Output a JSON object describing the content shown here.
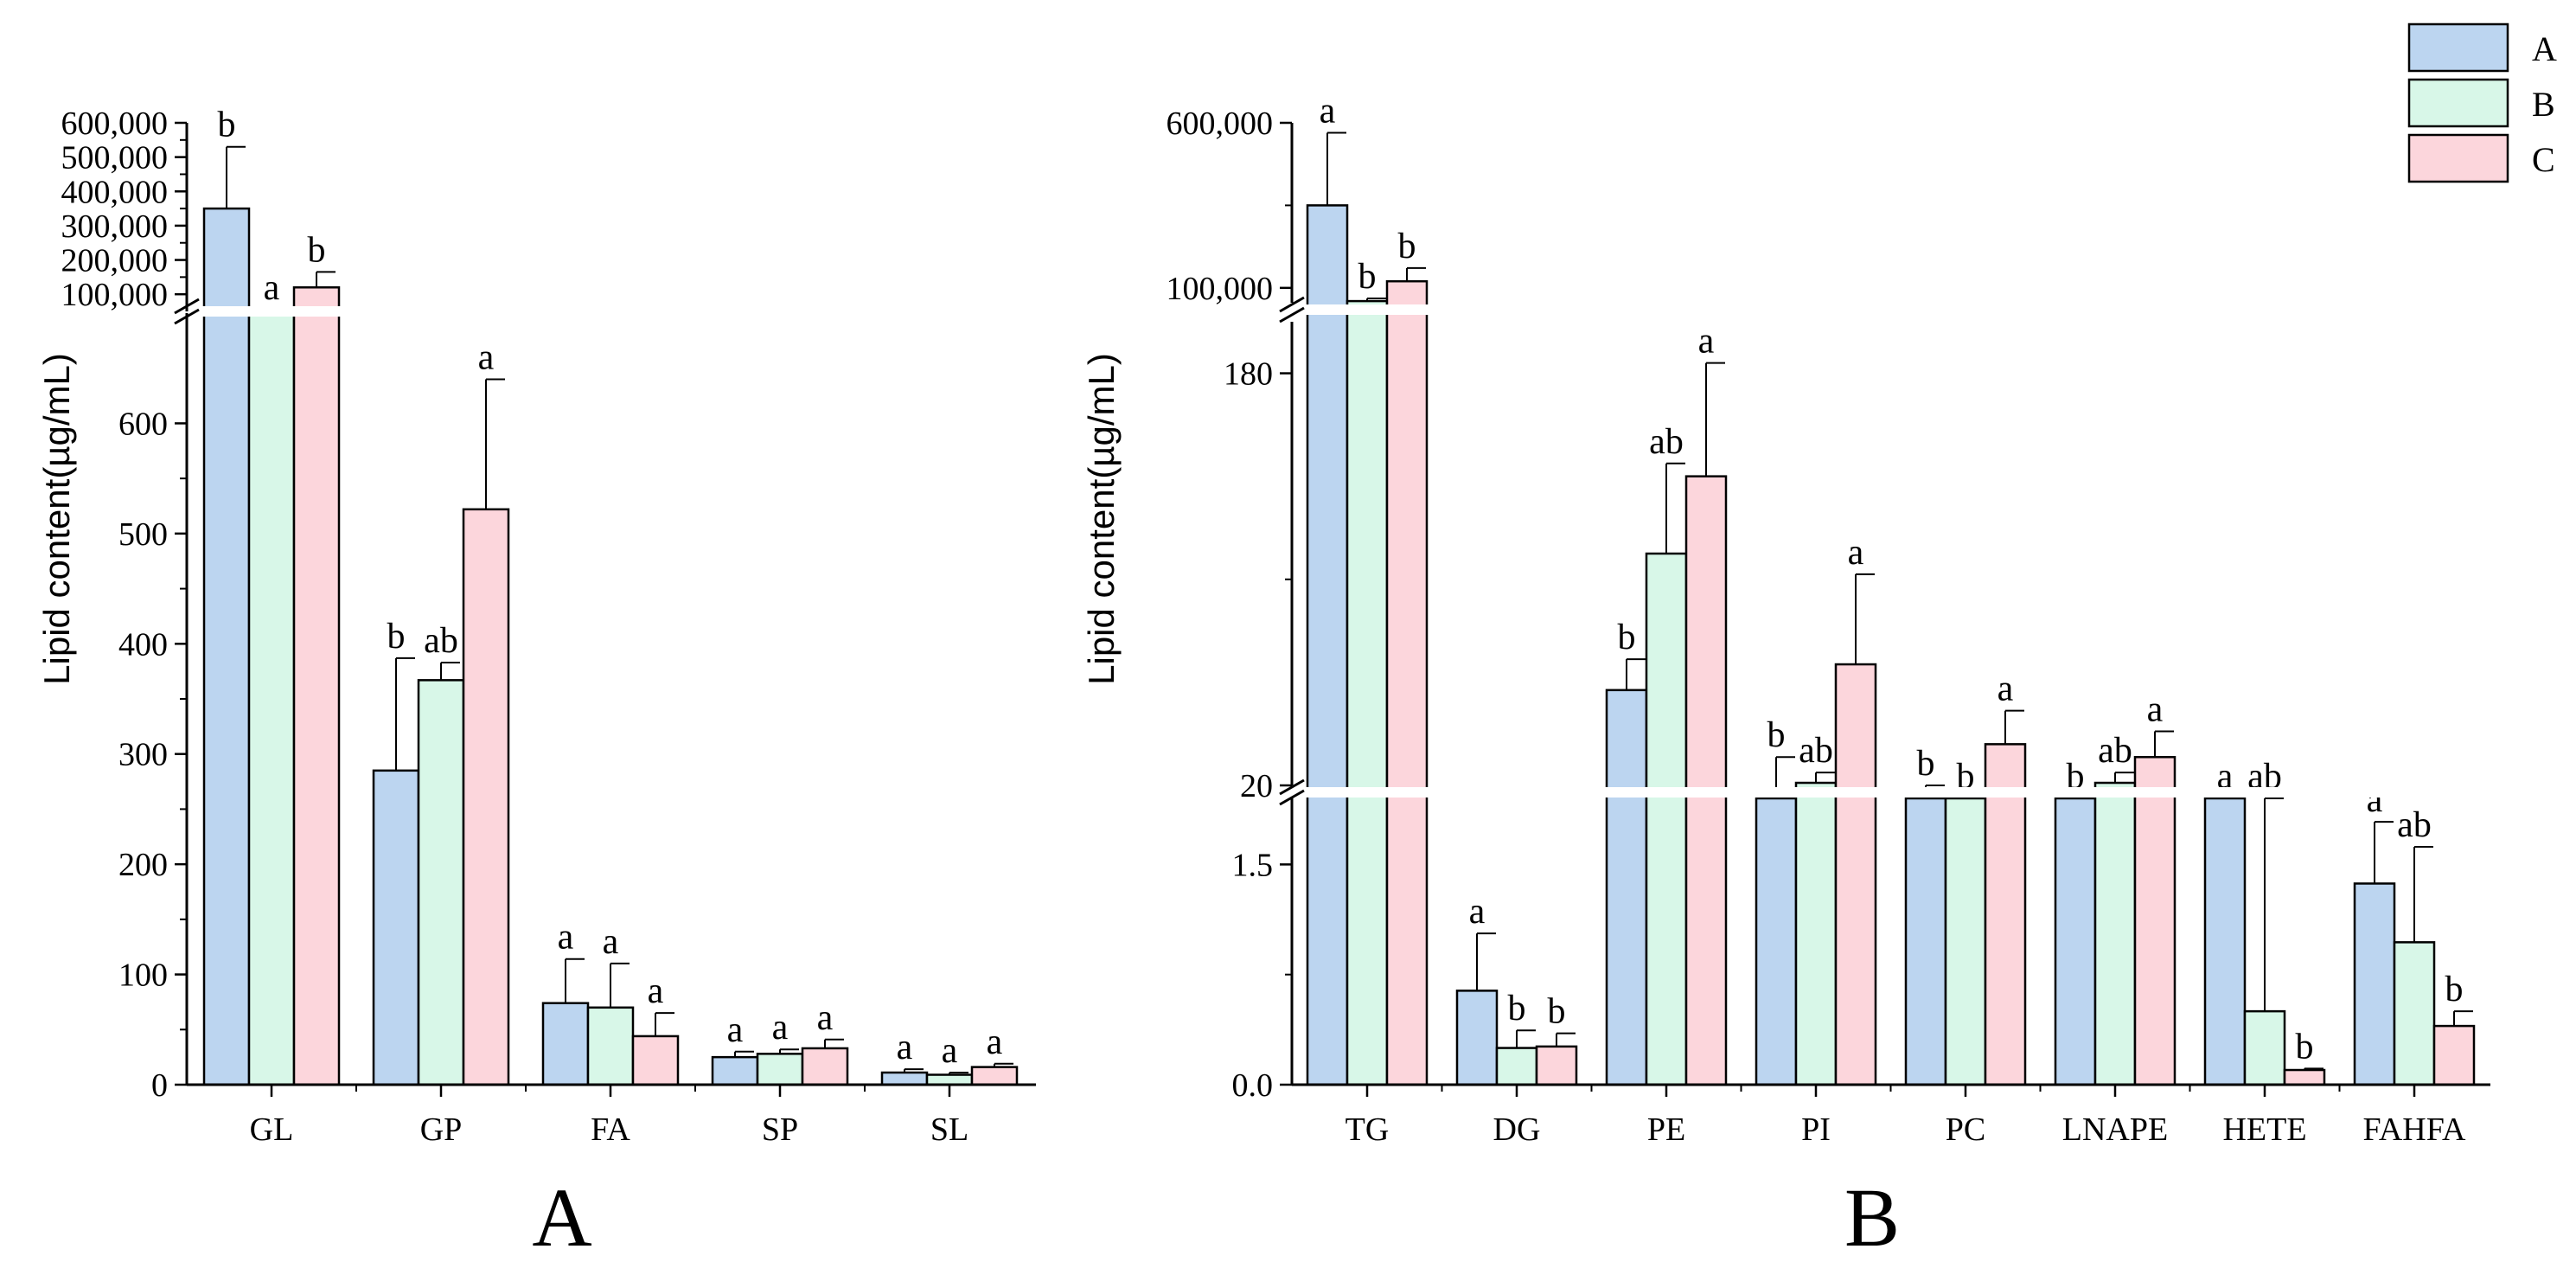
{
  "colors": {
    "A": "#bcd5f0",
    "B": "#d8f7e8",
    "C": "#fcd6dc"
  },
  "legend": [
    "A",
    "B",
    "C"
  ],
  "chart_data": [
    {
      "type": "bar",
      "title": "A",
      "panel_label": "A",
      "ylabel": "Lipid content(µg/mL)",
      "categories": [
        "GL",
        "GP",
        "FA",
        "SP",
        "SL"
      ],
      "series": [
        {
          "name": "A",
          "values": [
            350000,
            285,
            74,
            25,
            11
          ],
          "errors": [
            180000,
            102,
            40,
            5,
            3
          ],
          "letters": [
            "b",
            "b",
            "a",
            "a",
            "a"
          ]
        },
        {
          "name": "B",
          "values": [
            45000,
            367,
            70,
            28,
            9
          ],
          "errors": [
            10000,
            16,
            40,
            4,
            2
          ],
          "letters": [
            "a",
            "ab",
            "a",
            "a",
            "a"
          ]
        },
        {
          "name": "C",
          "values": [
            120000,
            522,
            44,
            33,
            16
          ],
          "errors": [
            45000,
            118,
            21,
            8,
            3
          ],
          "letters": [
            "b",
            "a",
            "a",
            "a",
            "a"
          ]
        }
      ],
      "segments": [
        {
          "range": [
            0,
            700
          ],
          "ticks": [
            0,
            100,
            200,
            300,
            400,
            500,
            600
          ],
          "tick_labels": [
            "0",
            "100",
            "200",
            "300",
            "400",
            "500",
            "600"
          ]
        },
        {
          "range": [
            50000,
            600000
          ],
          "ticks": [
            100000,
            200000,
            300000,
            400000,
            500000,
            600000
          ],
          "tick_labels": [
            "100,000",
            "200,000",
            "300,000",
            "400,000",
            "500,000",
            "600,000"
          ]
        }
      ]
    },
    {
      "type": "bar",
      "title": "B",
      "panel_label": "B",
      "ylabel": "Lipid content(µg/mL)",
      "categories": [
        "TG",
        "DG",
        "PE",
        "PI",
        "PC",
        "LNAPE",
        "HETE",
        "FAHFA"
      ],
      "series": [
        {
          "name": "A",
          "values": [
            350000,
            0.64,
            57,
            19,
            12,
            7,
            5,
            1.37
          ],
          "errors": [
            220000,
            0.39,
            12,
            12,
            8,
            5,
            10,
            0.42
          ],
          "letters": [
            "a",
            "a",
            "b",
            "b",
            "b",
            "b",
            "a",
            "a"
          ]
        },
        {
          "name": "B",
          "values": [
            60000,
            0.25,
            110,
            21,
            14,
            21,
            0.5,
            0.97
          ],
          "errors": [
            8000,
            0.12,
            35,
            4,
            5,
            4,
            3,
            0.65
          ],
          "letters": [
            "b",
            "b",
            "ab",
            "ab",
            "b",
            "ab",
            "ab",
            "ab"
          ]
        },
        {
          "name": "C",
          "values": [
            120000,
            0.26,
            140,
            67,
            36,
            31,
            0.1,
            0.4
          ],
          "errors": [
            40000,
            0.09,
            44,
            35,
            13,
            10,
            0.01,
            0.1
          ],
          "letters": [
            "b",
            "b",
            "a",
            "a",
            "a",
            "a",
            "b",
            "b"
          ]
        }
      ],
      "segments": [
        {
          "range": [
            0,
            1.95
          ],
          "ticks": [
            0,
            1.5
          ],
          "tick_labels": [
            "0.0",
            "1.5"
          ]
        },
        {
          "range": [
            20,
            200
          ],
          "ticks": [
            20,
            180
          ],
          "tick_labels": [
            "20",
            "180"
          ]
        },
        {
          "range": [
            55000,
            600000
          ],
          "ticks": [
            100000,
            600000
          ],
          "tick_labels": [
            "100,000",
            "600,000"
          ]
        }
      ]
    }
  ]
}
